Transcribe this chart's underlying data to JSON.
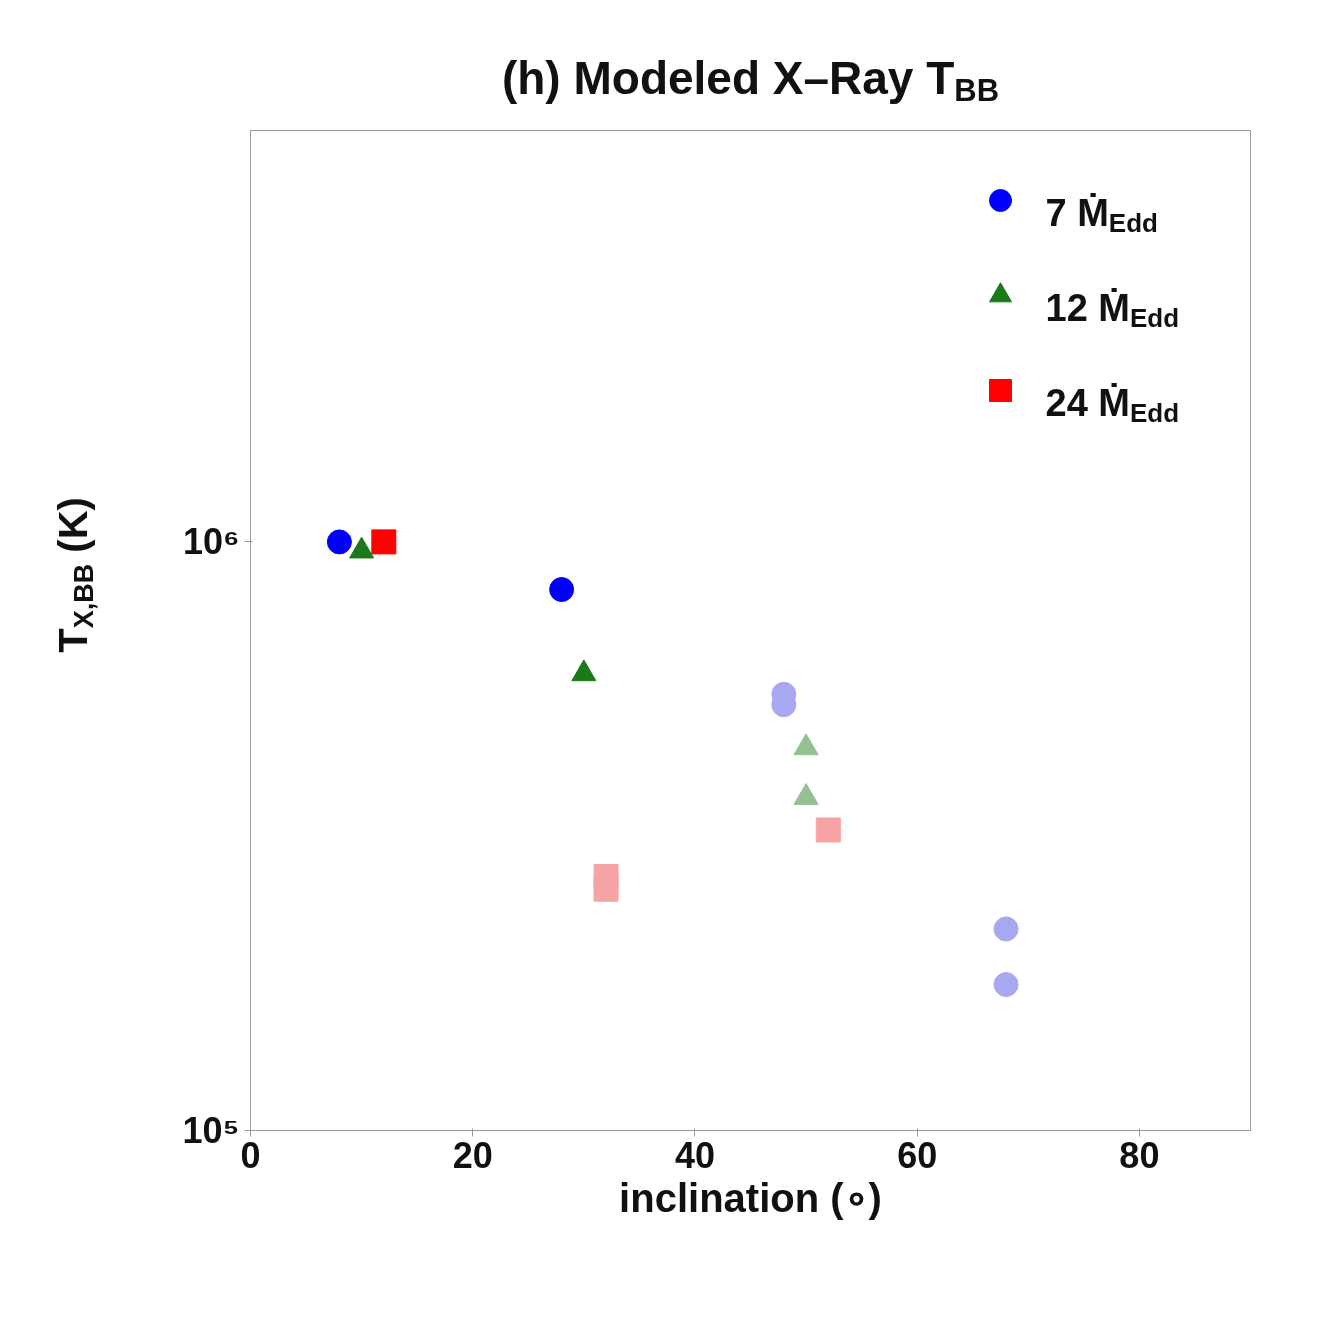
{
  "chart_data": {
    "type": "scatter",
    "title": "(h) Modeled X–Ray T$_{BB}$",
    "xlabel": "inclination (∘)",
    "ylabel": "T$_{X,BB}$ (K)",
    "xlim": [
      0,
      90
    ],
    "xticks": [
      0,
      20,
      40,
      60,
      80
    ],
    "ylim": [
      100000,
      5000000
    ],
    "yticks": [
      {
        "value": 100000,
        "label": "10⁵"
      },
      {
        "value": 1000000,
        "label": "10⁶"
      }
    ],
    "log": "y",
    "grid": false,
    "legend": "top right",
    "series": [
      {
        "name": "7 Ṁ$_{Edd}$",
        "color": "#0000ff",
        "marker": "circle",
        "x": [
          8,
          28,
          48,
          48,
          68,
          68
        ],
        "values": [
          1000000,
          830000,
          551000,
          529000,
          220000,
          177000
        ],
        "colors": [
          "#0000ff",
          "#0000ff",
          "#a8a8f2",
          "#a8a8f2",
          "#a8a8f2",
          "#a8a8f2"
        ]
      },
      {
        "name": "12 Ṁ$_{Edd}$",
        "color": "#1a7a1a",
        "marker": "triangle",
        "x": [
          10,
          30,
          50,
          50
        ],
        "values": [
          965000,
          597000,
          447000,
          368000
        ],
        "colors": [
          "#1a7a1a",
          "#1a7a1a",
          "#93c193",
          "#93c193"
        ]
      },
      {
        "name": "24 Ṁ$_{Edd}$",
        "color": "#ff0000",
        "marker": "square",
        "x": [
          12,
          32,
          32,
          52
        ],
        "values": [
          1000000,
          270000,
          257000,
          324000
        ],
        "colors": [
          "#ff0000",
          "#f7a3a3",
          "#f7a3a3",
          "#f7a3a3"
        ]
      }
    ]
  }
}
